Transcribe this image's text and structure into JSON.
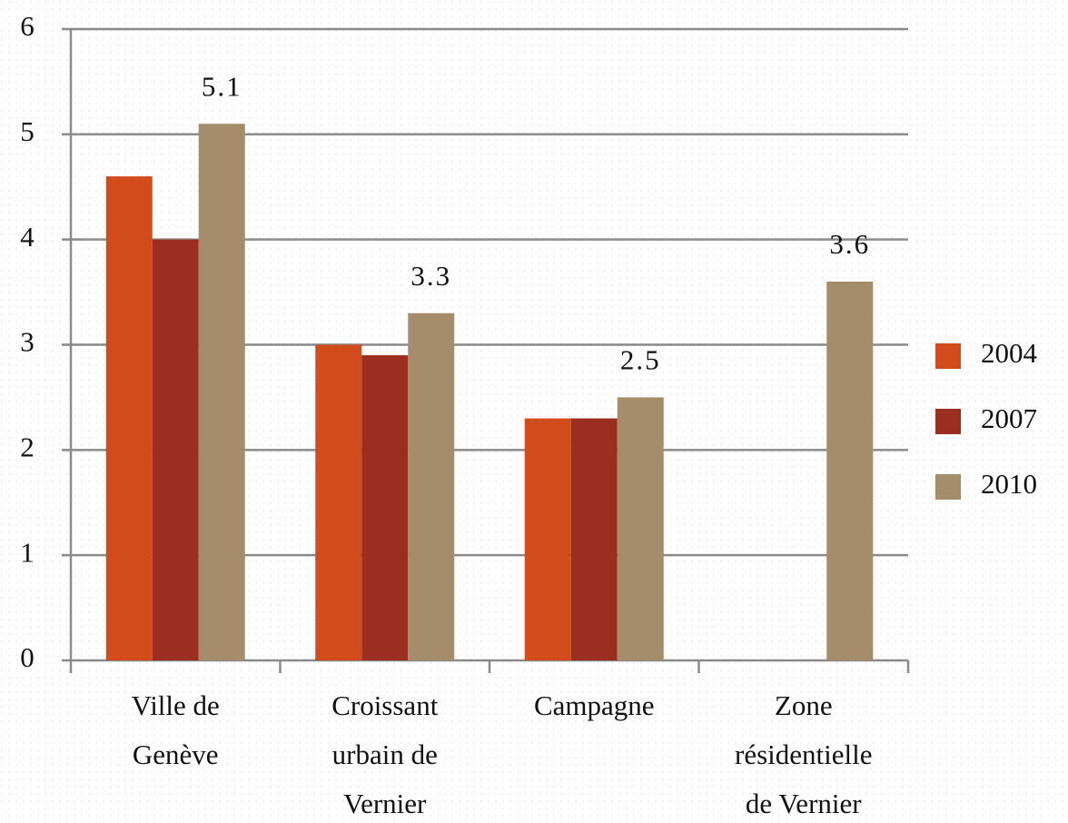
{
  "chart_data": {
    "type": "bar",
    "categories": [
      "Ville de\nGenève",
      "Croissant\nurbain de\nVernier",
      "Campagne",
      "Zone\nrésidentielle\nde Vernier"
    ],
    "series": [
      {
        "name": "2004",
        "color": "#d24b1a",
        "values": [
          4.6,
          3.0,
          2.3,
          null
        ]
      },
      {
        "name": "2007",
        "color": "#9c2e21",
        "values": [
          4.0,
          2.9,
          2.3,
          null
        ]
      },
      {
        "name": "2010",
        "color": "#a58d6b",
        "values": [
          5.1,
          3.3,
          2.5,
          3.6
        ],
        "data_labels": true
      }
    ],
    "ylim": [
      0,
      6
    ],
    "yticks": [
      0,
      1,
      2,
      3,
      4,
      5,
      6
    ],
    "grid": true,
    "legend": "right"
  }
}
